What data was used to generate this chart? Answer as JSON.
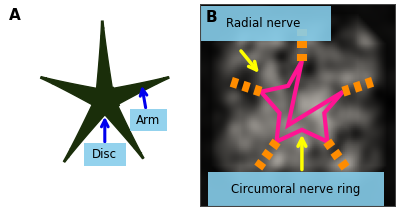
{
  "fig_width": 4.0,
  "fig_height": 2.11,
  "dpi": 100,
  "bg_color": "#ffffff",
  "panel_A_label": "A",
  "panel_B_label": "B",
  "label_fontsize": 11,
  "label_fontweight": "bold",
  "annotation_fontsize": 8.5,
  "annotation_bg_color": "#87CEEB",
  "annotation_bg_alpha": 0.9,
  "disc_label": "Disc",
  "arm_label": "Arm",
  "radial_nerve_label": "Radial nerve",
  "circumoral_label": "Circumoral nerve ring",
  "arrow_color_blue": "#0000EE",
  "arrow_color_yellow": "#FFFF00",
  "brittle_star_body_color": "#1a2e0a",
  "brittle_star_arm_color": "#1a2e0a",
  "nerve_ring_color": "#FF1493",
  "radial_nerve_color": "#FF8C00",
  "sem_bg_color": "#888888"
}
